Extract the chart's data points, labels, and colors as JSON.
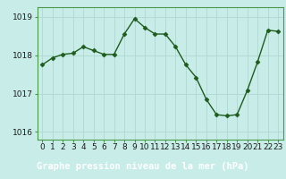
{
  "x": [
    0,
    1,
    2,
    3,
    4,
    5,
    6,
    7,
    8,
    9,
    10,
    11,
    12,
    13,
    14,
    15,
    16,
    17,
    18,
    19,
    20,
    21,
    22,
    23
  ],
  "y": [
    1017.75,
    1017.93,
    1018.02,
    1018.05,
    1018.22,
    1018.12,
    1018.02,
    1018.02,
    1018.55,
    1018.95,
    1018.72,
    1018.55,
    1018.55,
    1018.22,
    1017.75,
    1017.42,
    1016.85,
    1016.45,
    1016.42,
    1016.45,
    1017.08,
    1017.82,
    1018.65,
    1018.62
  ],
  "line_color": "#1e5c1e",
  "marker": "D",
  "marker_size": 2.5,
  "bg_color": "#c8ede8",
  "grid_color": "#b0d8d0",
  "footer_bg": "#2d6a2d",
  "footer_text": "Graphe pression niveau de la mer (hPa)",
  "footer_text_color": "#ffffff",
  "ylim": [
    1015.8,
    1019.25
  ],
  "yticks": [
    1016,
    1017,
    1018,
    1019
  ],
  "xticks": [
    0,
    1,
    2,
    3,
    4,
    5,
    6,
    7,
    8,
    9,
    10,
    11,
    12,
    13,
    14,
    15,
    16,
    17,
    18,
    19,
    20,
    21,
    22,
    23
  ],
  "tick_fontsize": 6.5,
  "footer_fontsize": 7.5,
  "linewidth": 1.0,
  "spine_color": "#4a9a4a"
}
